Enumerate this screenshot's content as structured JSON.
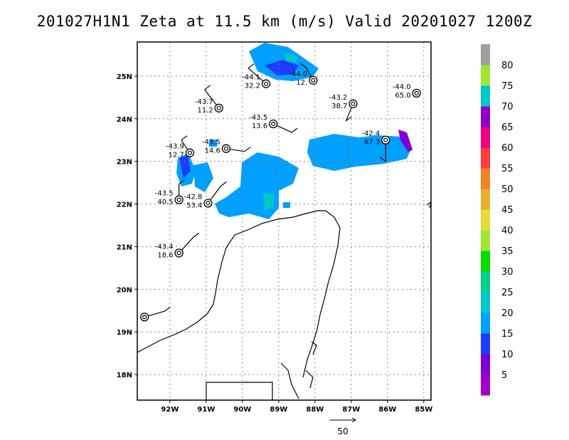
{
  "title": "201027H1N1 Zeta at 11.5 km (m/s) Valid 20201027 1200Z",
  "map": {
    "lat_labels": [
      "25N",
      "24N",
      "23N",
      "22N",
      "21N",
      "20N",
      "19N",
      "18N"
    ],
    "lat_values": [
      25,
      24,
      23,
      22,
      21,
      20,
      19,
      18
    ],
    "lon_labels": [
      "92W",
      "91W",
      "90W",
      "89W",
      "88W",
      "87W",
      "86W",
      "85W"
    ],
    "lon_values": [
      -92,
      -91,
      -90,
      -89,
      -88,
      -87,
      -86,
      -85
    ],
    "lon_range": [
      -92.9,
      -84.8
    ],
    "lat_range": [
      17.4,
      25.8
    ],
    "grid": true
  },
  "stations": [
    {
      "top": "-44.1",
      "bottom": "32.2",
      "lon": -89.35,
      "lat": 24.82
    },
    {
      "top": "-44.0",
      "bottom": "12.",
      "lon": -88.05,
      "lat": 24.9
    },
    {
      "top": "-43.7",
      "bottom": "11.2",
      "lon": -90.65,
      "lat": 24.25
    },
    {
      "top": "-43.2",
      "bottom": "38.7",
      "lon": -86.95,
      "lat": 24.35
    },
    {
      "top": "-44.0",
      "bottom": "65.0",
      "lon": -85.2,
      "lat": 24.6
    },
    {
      "top": "-43.5",
      "bottom": "13.6",
      "lon": -89.15,
      "lat": 23.88
    },
    {
      "top": "-42.4",
      "bottom": "67.3",
      "lon": -86.05,
      "lat": 23.5
    },
    {
      "top": "-43.9",
      "bottom": "12.7",
      "lon": -91.45,
      "lat": 23.2
    },
    {
      "top": "-43.5",
      "bottom": "14.6",
      "lon": -90.45,
      "lat": 23.3
    },
    {
      "top": "-43.5",
      "bottom": "40.5",
      "lon": -91.75,
      "lat": 22.1
    },
    {
      "top": "-42.8",
      "bottom": "53.4",
      "lon": -90.95,
      "lat": 22.02
    },
    {
      "top": "-43.4",
      "bottom": "18.6",
      "lon": -91.75,
      "lat": 20.85
    },
    {
      "top": "",
      "bottom": "",
      "lon": -92.7,
      "lat": 19.35
    }
  ],
  "colorbar": {
    "labels": [
      "5",
      "10",
      "15",
      "20",
      "25",
      "30",
      "35",
      "40",
      "45",
      "50",
      "55",
      "60",
      "65",
      "70",
      "75",
      "80"
    ],
    "colors": [
      "#a000c8",
      "#7d00d7",
      "#1e3cff",
      "#00a0ff",
      "#00c8c8",
      "#00d28c",
      "#00dc00",
      "#a0e632",
      "#e6dc32",
      "#e6af2d",
      "#f08228",
      "#fa3c3c",
      "#f00082",
      "#8c00c8",
      "#00c8c8",
      "#a0e632",
      "#a0a0a0"
    ]
  },
  "vector_scale": {
    "label": "50"
  }
}
